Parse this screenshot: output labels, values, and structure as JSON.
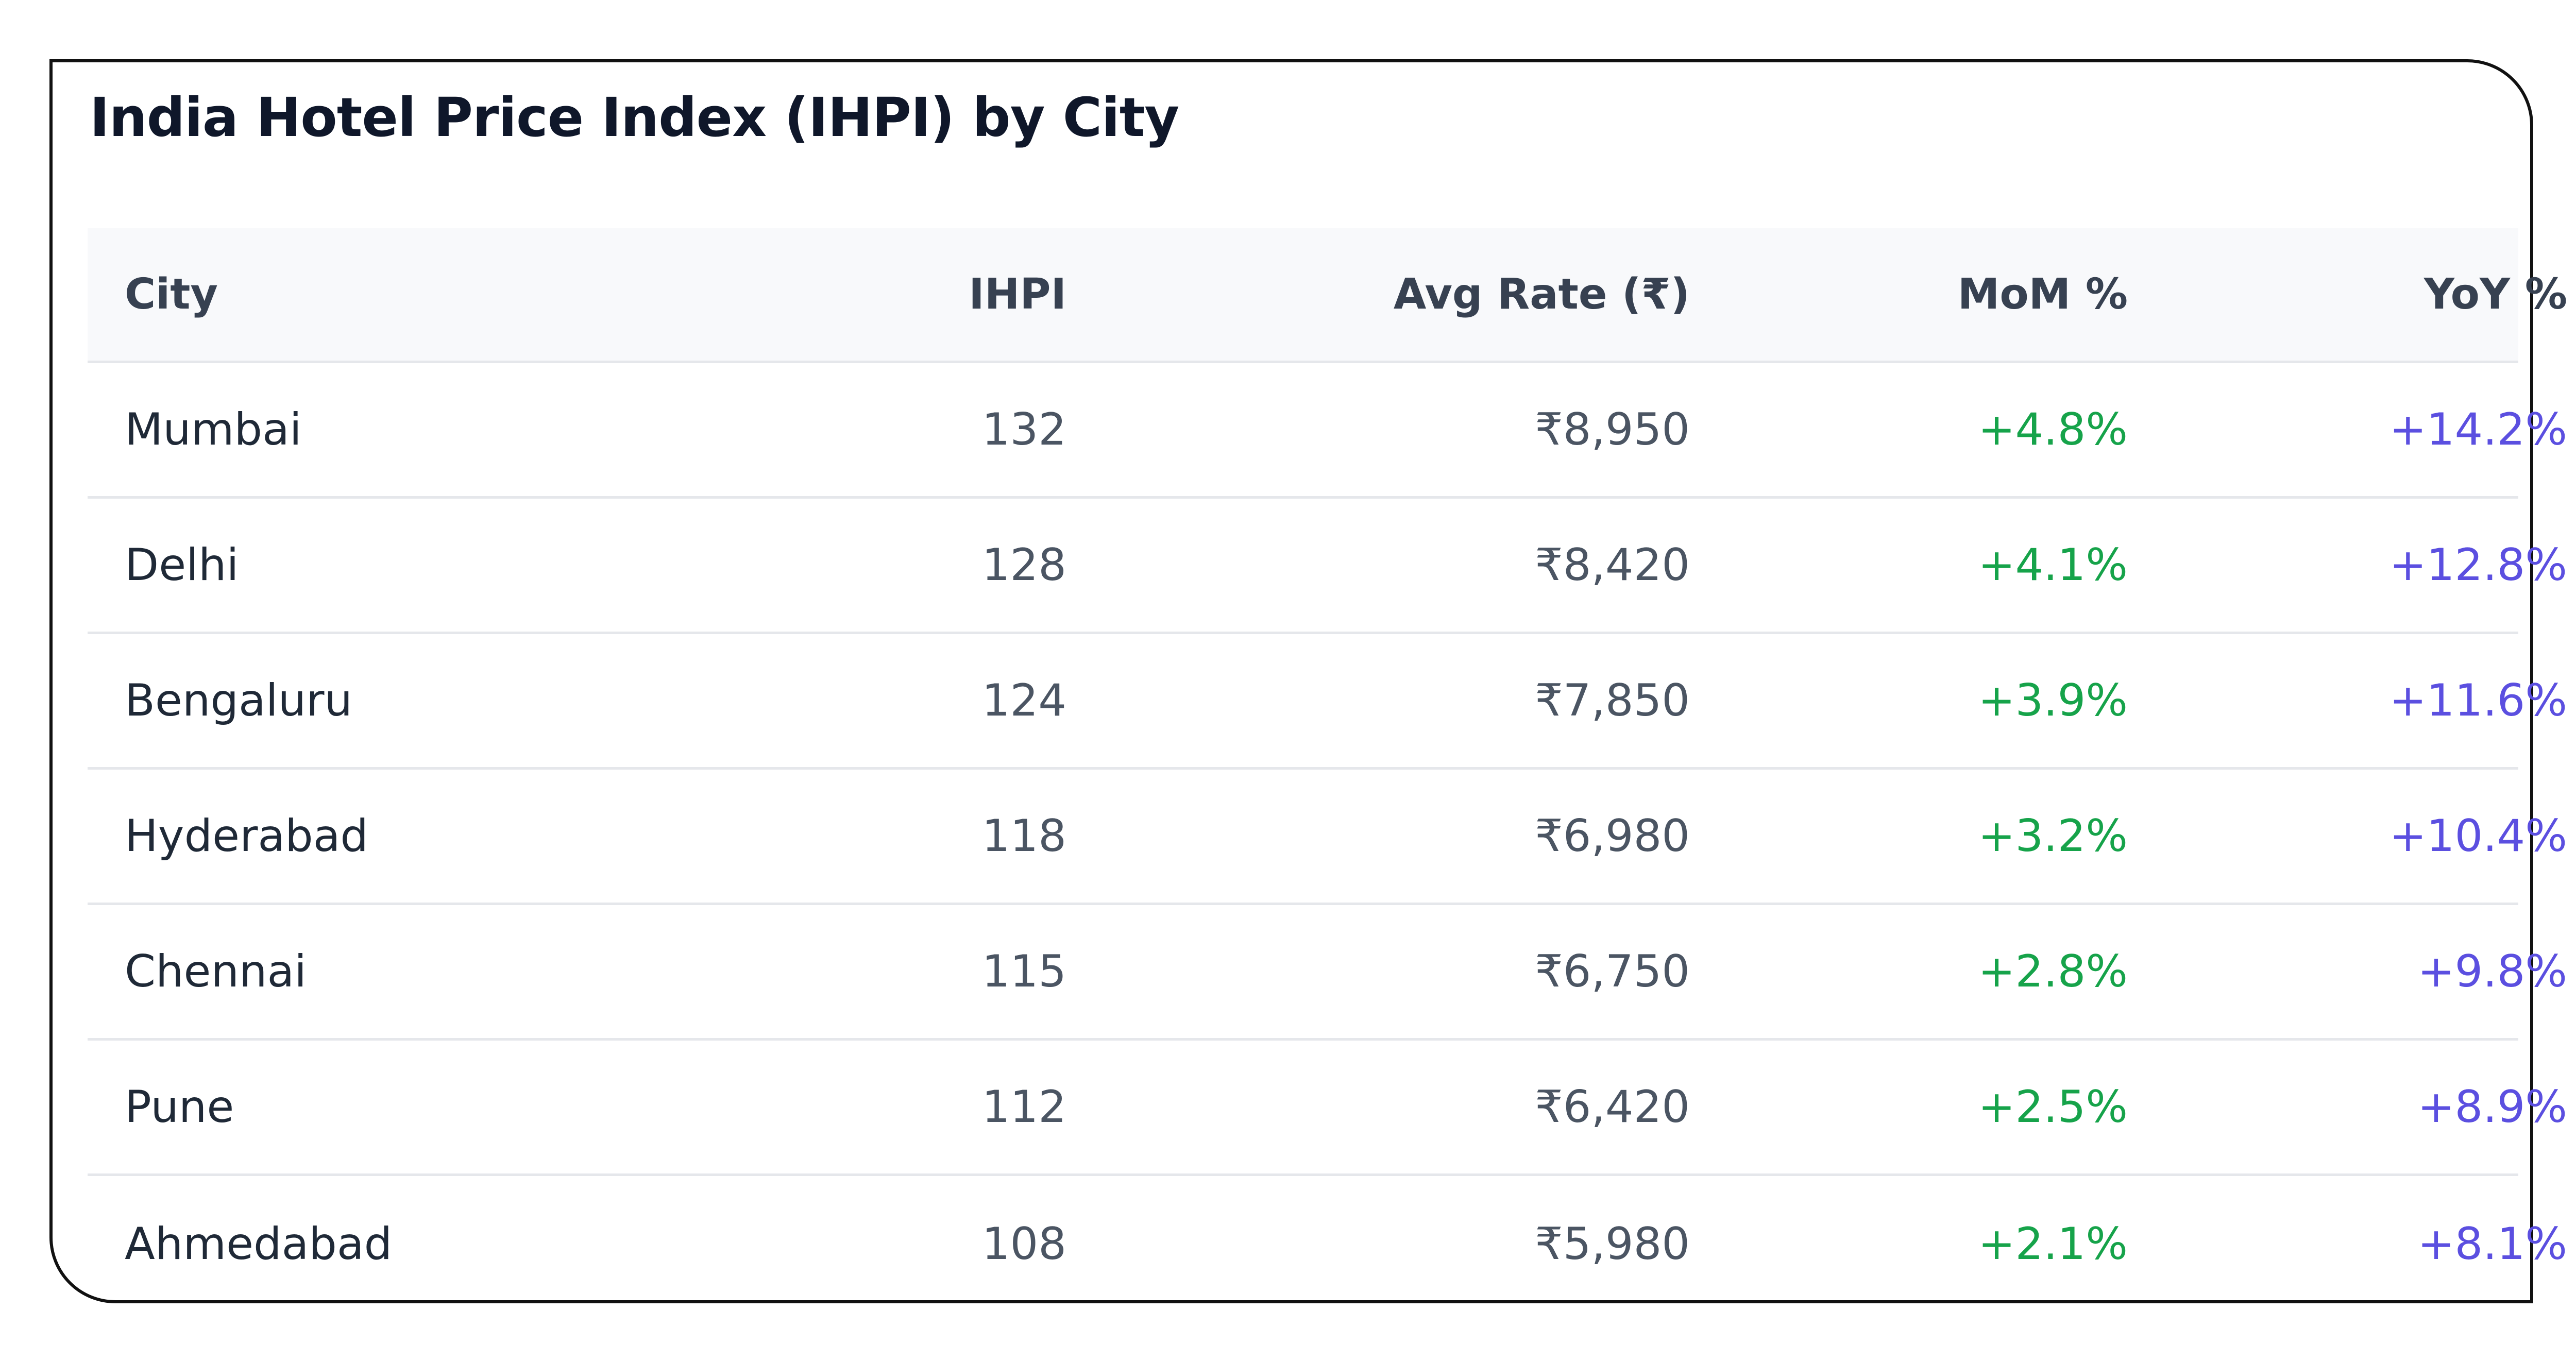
{
  "title": "India Hotel Price Index (IHPI) by City",
  "colors": {
    "mom_positive": "#16a34a",
    "yoy_positive": "#5b4fe0",
    "border": "#111111",
    "header_bg": "#f8f9fb",
    "row_divider": "#e5e7eb"
  },
  "chart_data": {
    "type": "table",
    "title": "India Hotel Price Index (IHPI) by City",
    "columns": [
      "City",
      "IHPI",
      "Avg Rate (₹)",
      "MoM %",
      "YoY %"
    ],
    "rows": [
      {
        "city": "Mumbai",
        "ihpi": "132",
        "avg_rate": "₹8,950",
        "mom": "+4.8%",
        "yoy": "+14.2%"
      },
      {
        "city": "Delhi",
        "ihpi": "128",
        "avg_rate": "₹8,420",
        "mom": "+4.1%",
        "yoy": "+12.8%"
      },
      {
        "city": "Bengaluru",
        "ihpi": "124",
        "avg_rate": "₹7,850",
        "mom": "+3.9%",
        "yoy": "+11.6%"
      },
      {
        "city": "Hyderabad",
        "ihpi": "118",
        "avg_rate": "₹6,980",
        "mom": "+3.2%",
        "yoy": "+10.4%"
      },
      {
        "city": "Chennai",
        "ihpi": "115",
        "avg_rate": "₹6,750",
        "mom": "+2.8%",
        "yoy": "+9.8%"
      },
      {
        "city": "Pune",
        "ihpi": "112",
        "avg_rate": "₹6,420",
        "mom": "+2.5%",
        "yoy": "+8.9%"
      },
      {
        "city": "Ahmedabad",
        "ihpi": "108",
        "avg_rate": "₹5,980",
        "mom": "+2.1%",
        "yoy": "+8.1%"
      }
    ]
  }
}
